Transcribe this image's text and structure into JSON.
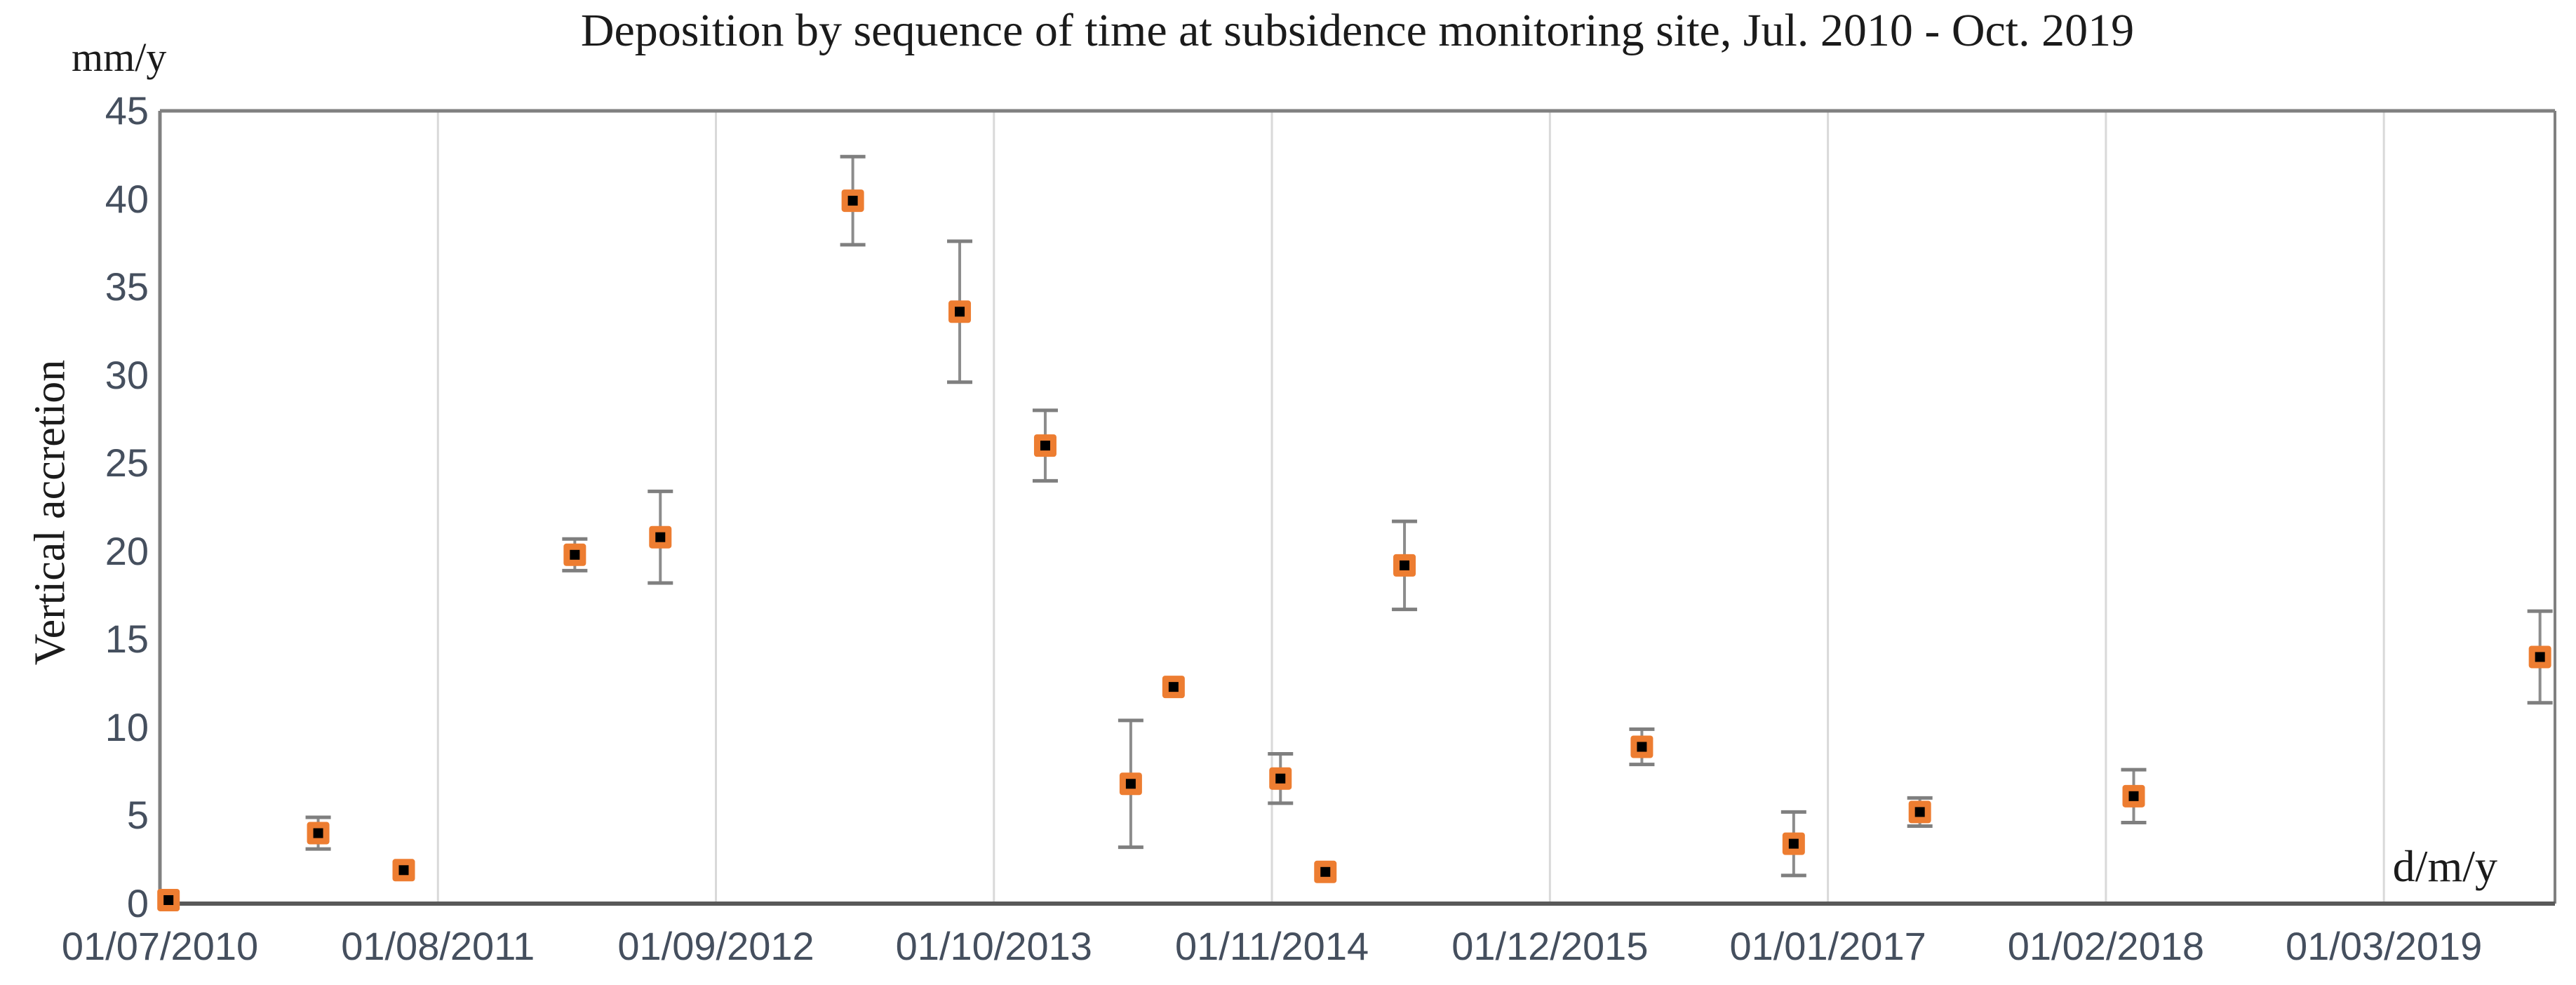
{
  "page": {
    "background": "#FFFFFF"
  },
  "chart_data": {
    "type": "scatter",
    "title": "Deposition by sequence of time at subsidence monitoring site, Jul. 2010 - Oct. 2019",
    "legend": "none",
    "grid": "vertical-gridlines-only",
    "y_axis": {
      "title": "Vertical accretion",
      "unit_label": "mm/y",
      "min": 0,
      "max": 45,
      "tick_step": 5,
      "ticks": [
        0,
        5,
        10,
        15,
        20,
        25,
        30,
        35,
        40,
        45
      ]
    },
    "x_axis": {
      "unit_label": "d/m/y",
      "note": "date axis from 01/07/2010, labeled gridlines every 13 months, axis extends to late Oct 2019",
      "tick_labels": [
        "01/07/2010",
        "01/08/2011",
        "01/09/2012",
        "01/10/2013",
        "01/11/2014",
        "01/12/2015",
        "01/01/2017",
        "01/02/2018",
        "01/03/2019"
      ],
      "tick_months": [
        0,
        13,
        26,
        39,
        52,
        65,
        78,
        91,
        104
      ],
      "gridline_months": [
        13,
        26,
        39,
        52,
        65,
        78,
        91,
        104
      ],
      "axis_end_months": 112
    },
    "series": [
      {
        "name": "Vertical accretion (mm/y)",
        "marker": "orange square with black center, vertical error bars",
        "points": [
          {
            "date_approx": "01/07/2010",
            "x_months": 0.4,
            "y": 0.2,
            "y_err": 0
          },
          {
            "date_approx": "12/02/2011",
            "x_months": 7.4,
            "y": 4.0,
            "y_err": 0.9
          },
          {
            "date_approx": "12/06/2011",
            "x_months": 11.4,
            "y": 1.9,
            "y_err": 0
          },
          {
            "date_approx": "12/02/2012",
            "x_months": 19.4,
            "y": 19.8,
            "y_err": 0.9
          },
          {
            "date_approx": "12/06/2012",
            "x_months": 23.4,
            "y": 20.8,
            "y_err": 2.6
          },
          {
            "date_approx": "11/03/2013",
            "x_months": 32.4,
            "y": 39.9,
            "y_err": 2.5
          },
          {
            "date_approx": "12/08/2013",
            "x_months": 37.4,
            "y": 33.6,
            "y_err": 4.0
          },
          {
            "date_approx": "12/12/2013",
            "x_months": 41.4,
            "y": 26.0,
            "y_err": 2.0
          },
          {
            "date_approx": "12/04/2014",
            "x_months": 45.4,
            "y": 6.8,
            "y_err": 3.6
          },
          {
            "date_approx": "12/06/2014",
            "x_months": 47.4,
            "y": 12.3,
            "y_err": 0
          },
          {
            "date_approx": "12/11/2014",
            "x_months": 52.4,
            "y": 7.1,
            "y_err": 1.4
          },
          {
            "date_approx": "16/01/2015",
            "x_months": 54.5,
            "y": 1.8,
            "y_err": 0
          },
          {
            "date_approx": "06/05/2015",
            "x_months": 58.2,
            "y": 19.2,
            "y_err": 2.5
          },
          {
            "date_approx": "09/04/2016",
            "x_months": 69.3,
            "y": 8.9,
            "y_err": 1.0
          },
          {
            "date_approx": "12/11/2016",
            "x_months": 76.4,
            "y": 3.4,
            "y_err": 1.8
          },
          {
            "date_approx": "09/05/2017",
            "x_months": 82.3,
            "y": 5.2,
            "y_err": 0.8
          },
          {
            "date_approx": "09/03/2018",
            "x_months": 92.3,
            "y": 6.1,
            "y_err": 1.5
          },
          {
            "date_approx": "09/10/2019",
            "x_months": 111.3,
            "y": 14.0,
            "y_err": 2.6
          }
        ]
      }
    ],
    "colors": {
      "marker_fill": "#ED7D31",
      "marker_center": "#000000",
      "error_bar": "#8C8C8C",
      "error_bar_cap": "#7F7F7F",
      "gridline": "#D9D9D9",
      "plot_border": "#808080",
      "axis_bottom": "#595959",
      "tick_text": "#454F5E",
      "title_text": "#1B1B1B"
    }
  }
}
